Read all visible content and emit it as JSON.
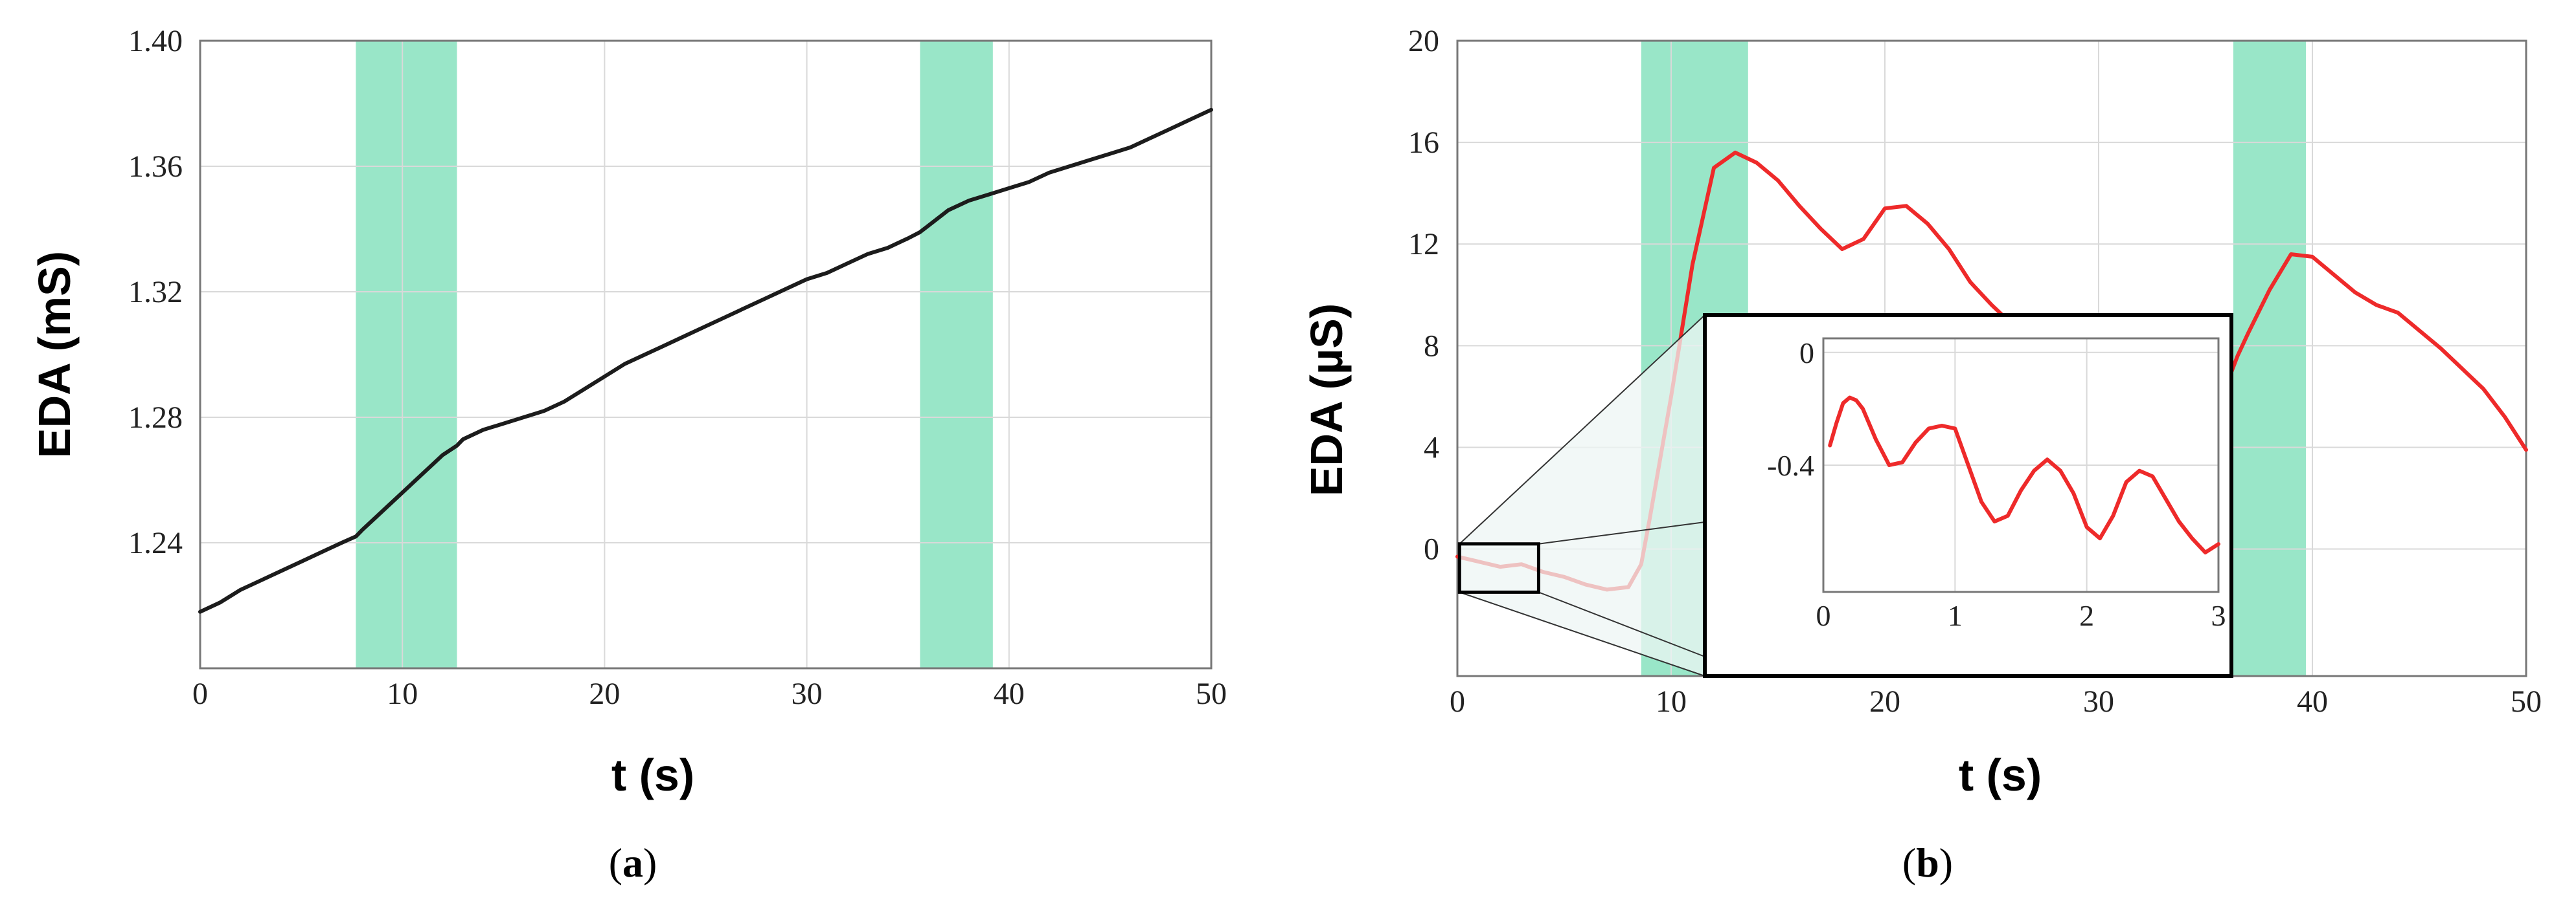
{
  "chart_data": [
    {
      "type": "line",
      "panel": "a",
      "caption": {
        "open": "(",
        "letter": "a",
        "close": ")"
      },
      "xlabel": "t (s)",
      "ylabel": "EDA (mS)",
      "xlim": [
        0,
        50
      ],
      "ylim": [
        1.2,
        1.4
      ],
      "xticks": [
        0,
        10,
        20,
        30,
        40,
        50
      ],
      "yticks": [
        1.24,
        1.28,
        1.32,
        1.36,
        1.4
      ],
      "ytick_labels": [
        "1.24",
        "1.28",
        "1.32",
        "1.36",
        "1.40"
      ],
      "grid": true,
      "shaded_intervals": [
        [
          7.7,
          12.7
        ],
        [
          35.6,
          39.2
        ]
      ],
      "colors": {
        "line": "#1c1c1c",
        "shade": "#99e6c8"
      },
      "series": [
        {
          "x": [
            0,
            1,
            2,
            3,
            4,
            5,
            6,
            7,
            7.7,
            8,
            9,
            10,
            11,
            12,
            12.7,
            13,
            14,
            15,
            16,
            17,
            18,
            19,
            20,
            21,
            22,
            23,
            24,
            25,
            26,
            27,
            28,
            29,
            30,
            31,
            32,
            33,
            34,
            35,
            35.6,
            36,
            37,
            38,
            39,
            40,
            41,
            42,
            43,
            44,
            45,
            46,
            47,
            48,
            49,
            50
          ],
          "values": [
            1.218,
            1.221,
            1.225,
            1.228,
            1.231,
            1.234,
            1.237,
            1.24,
            1.242,
            1.244,
            1.25,
            1.256,
            1.262,
            1.268,
            1.271,
            1.273,
            1.276,
            1.278,
            1.28,
            1.282,
            1.285,
            1.289,
            1.293,
            1.297,
            1.3,
            1.303,
            1.306,
            1.309,
            1.312,
            1.315,
            1.318,
            1.321,
            1.324,
            1.326,
            1.329,
            1.332,
            1.334,
            1.337,
            1.339,
            1.341,
            1.346,
            1.349,
            1.351,
            1.353,
            1.355,
            1.358,
            1.36,
            1.362,
            1.364,
            1.366,
            1.369,
            1.372,
            1.375,
            1.378
          ]
        }
      ]
    },
    {
      "type": "line",
      "panel": "b",
      "caption": {
        "open": "(",
        "letter": "b",
        "close": ")"
      },
      "xlabel": "t (s)",
      "ylabel": "EDA (µS)",
      "xlim": [
        0,
        50
      ],
      "ylim": [
        -5,
        20
      ],
      "xticks": [
        0,
        10,
        20,
        30,
        40,
        50
      ],
      "yticks": [
        0,
        4,
        8,
        12,
        16,
        20
      ],
      "ytick_labels": [
        "0",
        "4",
        "8",
        "12",
        "16",
        "20"
      ],
      "grid": true,
      "shaded_intervals": [
        [
          8.6,
          13.6
        ],
        [
          36.3,
          39.7
        ]
      ],
      "colors": {
        "line": "#ee2a2a",
        "shade": "#99e6c8"
      },
      "series": [
        {
          "x": [
            0,
            1,
            2,
            3,
            4,
            5,
            6,
            7,
            8,
            8.6,
            9,
            10,
            11,
            12,
            13,
            14,
            15,
            16,
            17,
            18,
            19,
            20,
            21,
            22,
            23,
            24,
            25,
            26,
            27,
            28,
            29,
            30,
            31,
            32,
            33,
            34,
            35,
            36,
            36.5,
            37,
            38,
            39,
            40,
            41,
            42,
            43,
            44,
            45,
            46,
            47,
            48,
            49,
            50
          ],
          "values": [
            -0.3,
            -0.5,
            -0.7,
            -0.6,
            -0.9,
            -1.1,
            -1.4,
            -1.6,
            -1.5,
            -0.6,
            1.2,
            6.0,
            11.2,
            15.0,
            15.6,
            15.2,
            14.5,
            13.5,
            12.6,
            11.8,
            12.2,
            13.4,
            13.5,
            12.8,
            11.8,
            10.5,
            9.6,
            8.8,
            8.0,
            7.1,
            6.1,
            5.4,
            4.8,
            4.5,
            4.3,
            4.6,
            5.2,
            6.5,
            7.6,
            8.5,
            10.2,
            11.6,
            11.5,
            10.8,
            10.1,
            9.6,
            9.3,
            8.6,
            7.9,
            7.1,
            6.3,
            5.2,
            3.9
          ]
        }
      ],
      "inset": {
        "xlim": [
          0,
          3
        ],
        "ylim": [
          -0.85,
          0.05
        ],
        "xticks": [
          0,
          1,
          2,
          3
        ],
        "yticks": [
          0,
          -0.4
        ],
        "ytick_labels": [
          "0",
          "-0.4"
        ],
        "zoom_box": {
          "x": [
            0.1,
            3.8
          ],
          "y": [
            -1.7,
            0.2
          ]
        },
        "series": [
          {
            "x": [
              0.05,
              0.1,
              0.15,
              0.2,
              0.25,
              0.3,
              0.4,
              0.5,
              0.6,
              0.7,
              0.8,
              0.9,
              1.0,
              1.1,
              1.2,
              1.3,
              1.4,
              1.5,
              1.6,
              1.7,
              1.8,
              1.9,
              2.0,
              2.1,
              2.2,
              2.3,
              2.4,
              2.5,
              2.6,
              2.7,
              2.8,
              2.9,
              3.0
            ],
            "values": [
              -0.33,
              -0.25,
              -0.18,
              -0.16,
              -0.17,
              -0.2,
              -0.31,
              -0.4,
              -0.39,
              -0.32,
              -0.27,
              -0.26,
              -0.27,
              -0.4,
              -0.53,
              -0.6,
              -0.58,
              -0.49,
              -0.42,
              -0.38,
              -0.42,
              -0.5,
              -0.62,
              -0.66,
              -0.58,
              -0.46,
              -0.42,
              -0.44,
              -0.52,
              -0.6,
              -0.66,
              -0.71,
              -0.68
            ]
          }
        ]
      }
    }
  ]
}
